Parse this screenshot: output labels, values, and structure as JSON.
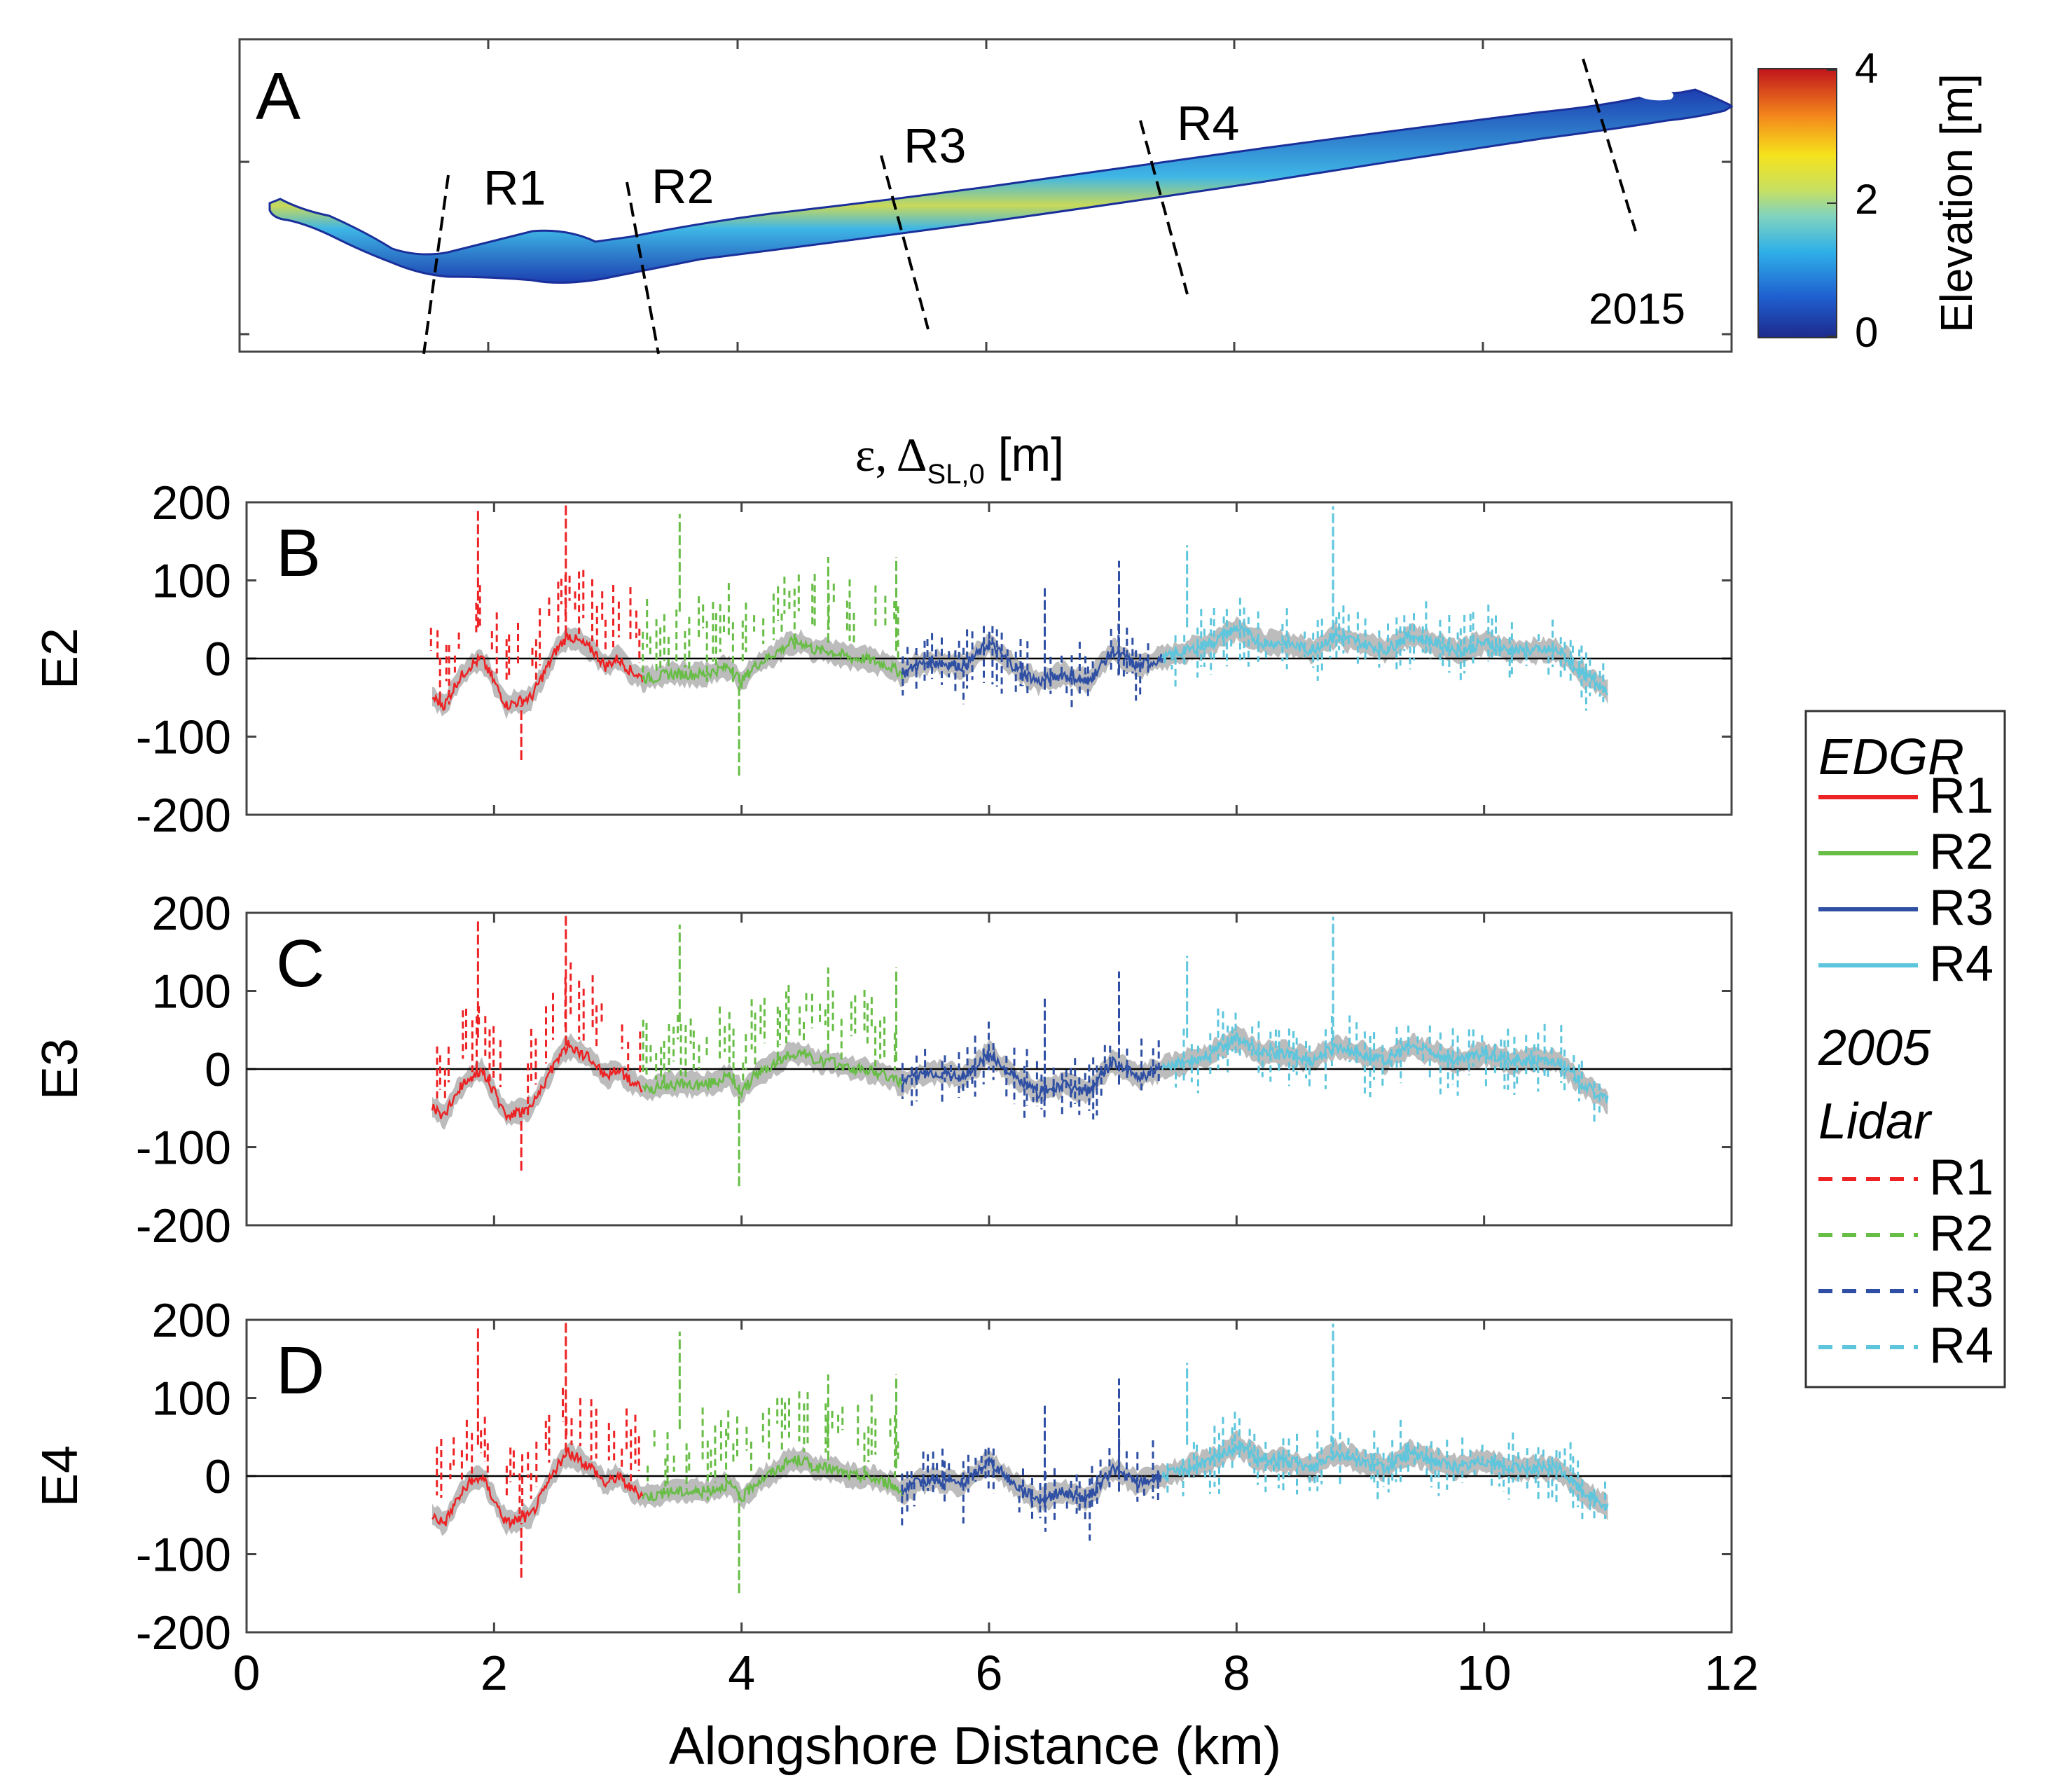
{
  "chart_data": {
    "type": "line",
    "x_unit_label": "Alongshore Distance (km)",
    "xlim": [
      0,
      12
    ],
    "x_ticks": [
      0,
      2,
      4,
      6,
      8,
      10,
      12
    ],
    "ylim": [
      -200,
      200
    ],
    "y_ticks": [
      200,
      100,
      0,
      -100,
      -200
    ],
    "common_ylabel_main": "ε, Δ",
    "common_ylabel_sub": "SL,0",
    "common_ylabel_unit": " [m]",
    "map_panel": {
      "letter": "A",
      "year": "2015",
      "region_labels": [
        "R1",
        "R2",
        "R3",
        "R4"
      ],
      "colorbar": {
        "label": "Elevation [m]",
        "min": 0,
        "max": 4,
        "ticks": [
          "4",
          "2",
          "0"
        ]
      },
      "region_boundaries_km": [
        1.6,
        3.2,
        5.3,
        7.4,
        11.0
      ]
    },
    "panels": [
      {
        "letter": "B",
        "ylabel": "E2",
        "offset": 0
      },
      {
        "letter": "C",
        "ylabel": "E3",
        "offset": 1
      },
      {
        "letter": "D",
        "ylabel": "E4",
        "offset": 2
      }
    ],
    "edgr_profile": {
      "x": [
        1.5,
        1.6,
        1.7,
        1.8,
        1.9,
        2.0,
        2.1,
        2.2,
        2.3,
        2.4,
        2.5,
        2.6,
        2.7,
        2.8,
        2.9,
        3.0,
        3.1,
        3.2,
        3.3,
        3.4,
        3.5,
        3.6,
        3.7,
        3.8,
        3.9,
        4.0,
        4.1,
        4.2,
        4.3,
        4.4,
        4.5,
        4.6,
        4.7,
        4.8,
        4.9,
        5.0,
        5.1,
        5.2,
        5.3,
        5.4,
        5.5,
        5.6,
        5.8,
        6.0,
        6.2,
        6.4,
        6.6,
        6.8,
        7.0,
        7.2,
        7.4,
        7.6,
        7.8,
        8.0,
        8.2,
        8.4,
        8.6,
        8.8,
        9.0,
        9.2,
        9.4,
        9.6,
        9.8,
        10.0,
        10.2,
        10.4,
        10.6,
        10.8,
        11.0
      ],
      "y": [
        -50,
        -60,
        -30,
        -10,
        0,
        -30,
        -60,
        -55,
        -50,
        -20,
        10,
        30,
        20,
        10,
        -10,
        0,
        -15,
        -25,
        -25,
        -20,
        -20,
        -20,
        -20,
        -15,
        -10,
        -30,
        -10,
        0,
        10,
        20,
        20,
        10,
        10,
        5,
        0,
        0,
        -5,
        -10,
        -20,
        -10,
        -5,
        -5,
        -10,
        20,
        -10,
        -30,
        -20,
        -30,
        10,
        -10,
        0,
        10,
        20,
        40,
        20,
        20,
        10,
        30,
        20,
        10,
        30,
        20,
        10,
        20,
        10,
        10,
        10,
        -20,
        -40
      ]
    },
    "series": [
      {
        "name": "R1",
        "source": "EDGR",
        "color": "#ed2224",
        "dash": "solid",
        "x_range": [
          1.5,
          3.2
        ]
      },
      {
        "name": "R2",
        "source": "EDGR",
        "color": "#67bd45",
        "dash": "solid",
        "x_range": [
          3.2,
          5.3
        ]
      },
      {
        "name": "R3",
        "source": "EDGR",
        "color": "#2e4fa3",
        "dash": "solid",
        "x_range": [
          5.3,
          7.4
        ]
      },
      {
        "name": "R4",
        "source": "EDGR",
        "color": "#5dc6dd",
        "dash": "solid",
        "x_range": [
          7.4,
          11.0
        ]
      },
      {
        "name": "R1",
        "source": "2005 Lidar",
        "color": "#ed2224",
        "dash": "dashed",
        "x_range": [
          1.5,
          3.2
        ]
      },
      {
        "name": "R2",
        "source": "2005 Lidar",
        "color": "#67bd45",
        "dash": "dashed",
        "x_range": [
          3.2,
          5.3
        ]
      },
      {
        "name": "R3",
        "source": "2005 Lidar",
        "color": "#2e4fa3",
        "dash": "dashed",
        "x_range": [
          5.3,
          7.4
        ]
      },
      {
        "name": "R4",
        "source": "2005 Lidar",
        "color": "#5dc6dd",
        "dash": "dashed",
        "x_range": [
          7.4,
          11.0
        ]
      }
    ],
    "legend": {
      "header_edgr": "EDGR",
      "header_lidar_year": "2005",
      "header_lidar": "Lidar",
      "labels": [
        "R1",
        "R2",
        "R3",
        "R4"
      ],
      "placement": "right"
    },
    "colors": {
      "band": "#b5b5b5",
      "zero_line": "#000000"
    }
  }
}
